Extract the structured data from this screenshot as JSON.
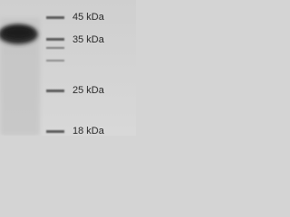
{
  "markers": [
    "45 kDa",
    "35 kDa",
    "25 kDa",
    "18 kDa"
  ]
}
